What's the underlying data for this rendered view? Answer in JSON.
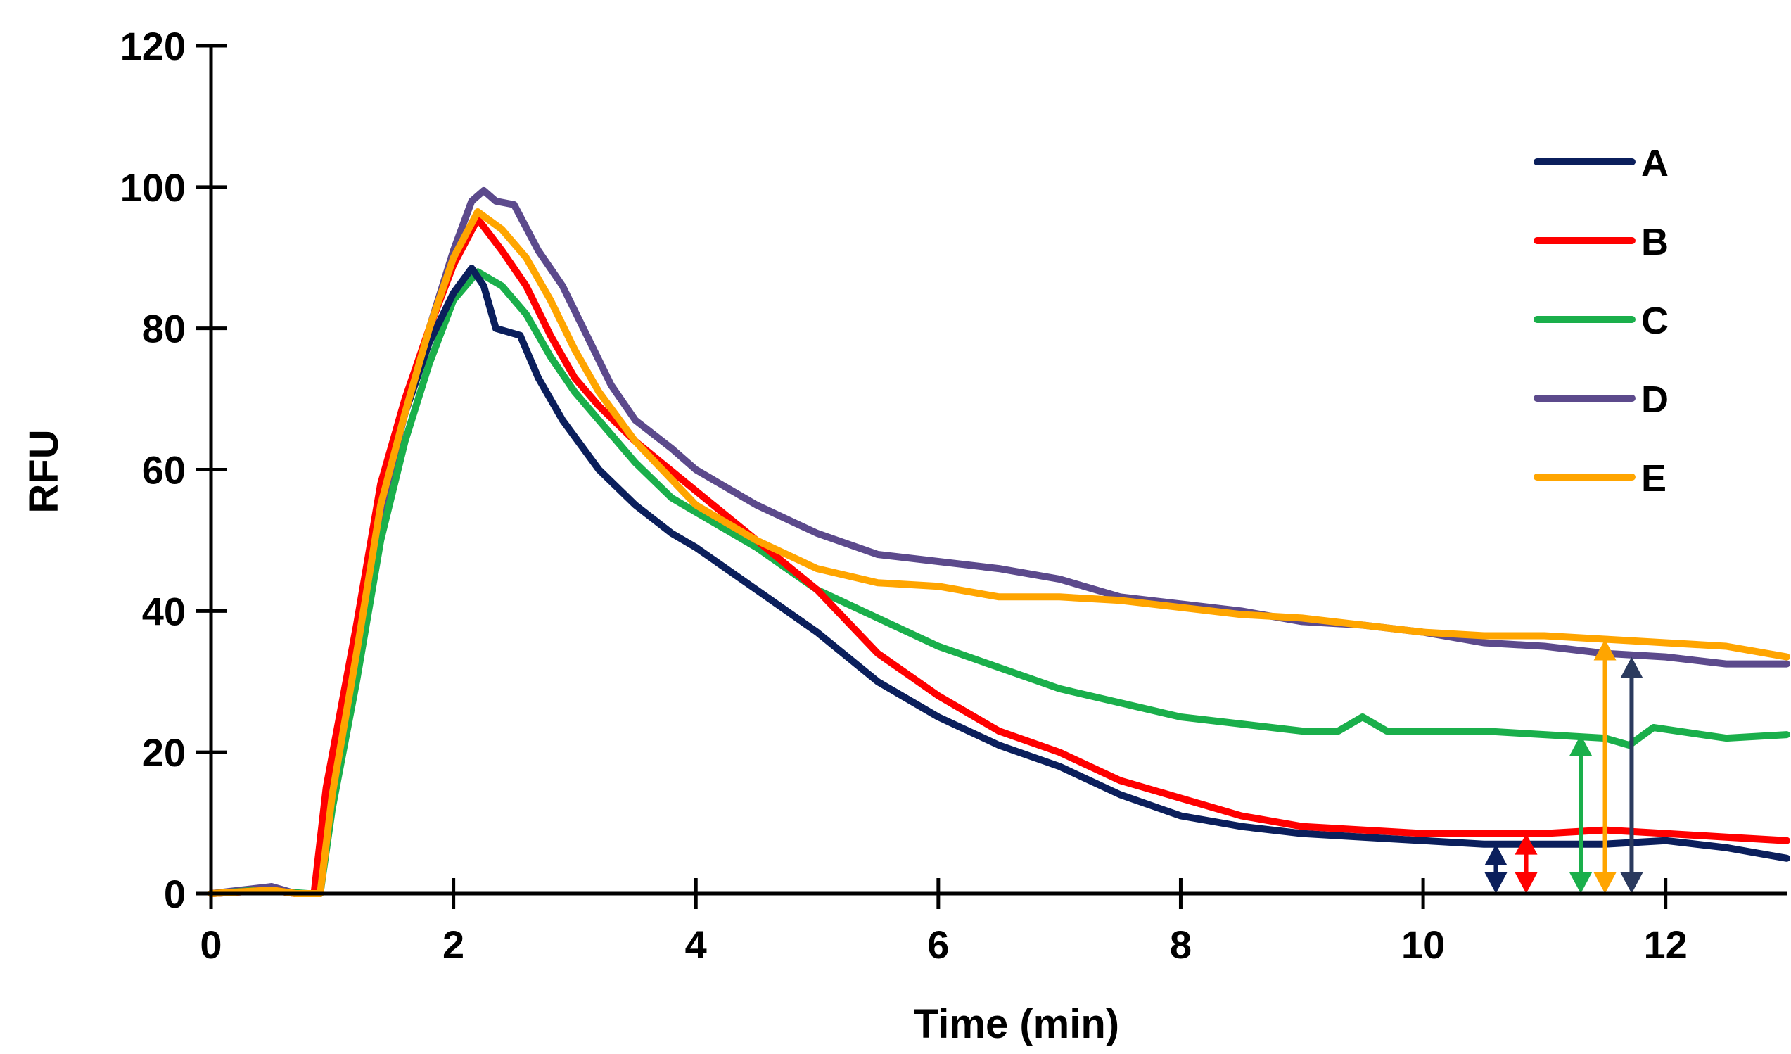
{
  "chart_data": {
    "type": "line",
    "title": "",
    "xlabel": "Time (min)",
    "ylabel": "RFU",
    "xlim": [
      0,
      13
    ],
    "ylim": [
      0,
      120
    ],
    "xticks": [
      0,
      2,
      4,
      6,
      8,
      10,
      12
    ],
    "yticks": [
      0,
      20,
      40,
      60,
      80,
      100,
      120
    ],
    "xtick_labels": [
      "0",
      "2",
      "4",
      "6",
      "8",
      "10",
      "12"
    ],
    "ytick_labels": [
      "0",
      "20",
      "40",
      "60",
      "80",
      "100",
      "120"
    ],
    "grid": false,
    "legend_position": "top-right",
    "series": [
      {
        "name": "A",
        "color": "#0b1f5c",
        "points": [
          [
            0,
            0
          ],
          [
            0.5,
            0.5
          ],
          [
            0.7,
            0
          ],
          [
            0.9,
            0
          ],
          [
            1.0,
            15
          ],
          [
            1.2,
            35
          ],
          [
            1.4,
            55
          ],
          [
            1.6,
            68
          ],
          [
            1.8,
            78
          ],
          [
            2.0,
            85
          ],
          [
            2.15,
            88.5
          ],
          [
            2.25,
            86
          ],
          [
            2.35,
            80
          ],
          [
            2.55,
            79
          ],
          [
            2.7,
            73
          ],
          [
            2.9,
            67
          ],
          [
            3.2,
            60
          ],
          [
            3.5,
            55
          ],
          [
            3.8,
            51
          ],
          [
            4.0,
            49
          ],
          [
            4.5,
            43
          ],
          [
            5.0,
            37
          ],
          [
            5.5,
            30
          ],
          [
            6.0,
            25
          ],
          [
            6.5,
            21
          ],
          [
            7.0,
            18
          ],
          [
            7.5,
            14
          ],
          [
            8.0,
            11
          ],
          [
            8.5,
            9.5
          ],
          [
            9.0,
            8.5
          ],
          [
            9.5,
            8
          ],
          [
            10.0,
            7.5
          ],
          [
            10.5,
            7
          ],
          [
            11.0,
            7
          ],
          [
            11.5,
            7
          ],
          [
            12.0,
            7.5
          ],
          [
            12.5,
            6.5
          ],
          [
            13.0,
            5
          ]
        ]
      },
      {
        "name": "B",
        "color": "#ff0000",
        "points": [
          [
            0,
            0
          ],
          [
            0.5,
            0.5
          ],
          [
            0.7,
            0
          ],
          [
            0.85,
            0
          ],
          [
            0.95,
            15
          ],
          [
            1.2,
            38
          ],
          [
            1.4,
            58
          ],
          [
            1.6,
            70
          ],
          [
            1.8,
            80
          ],
          [
            2.0,
            89
          ],
          [
            2.2,
            95.5
          ],
          [
            2.4,
            91
          ],
          [
            2.6,
            86
          ],
          [
            2.8,
            79
          ],
          [
            3.0,
            73
          ],
          [
            3.2,
            69
          ],
          [
            3.5,
            64
          ],
          [
            4.0,
            57
          ],
          [
            4.5,
            50
          ],
          [
            5.0,
            43
          ],
          [
            5.5,
            34
          ],
          [
            6.0,
            28
          ],
          [
            6.5,
            23
          ],
          [
            7.0,
            20
          ],
          [
            7.5,
            16
          ],
          [
            8.0,
            13.5
          ],
          [
            8.5,
            11
          ],
          [
            9.0,
            9.5
          ],
          [
            9.5,
            9
          ],
          [
            10.0,
            8.5
          ],
          [
            10.5,
            8.5
          ],
          [
            11.0,
            8.5
          ],
          [
            11.5,
            9
          ],
          [
            12.0,
            8.5
          ],
          [
            12.5,
            8
          ],
          [
            13.0,
            7.5
          ]
        ]
      },
      {
        "name": "C",
        "color": "#1aaf4b",
        "points": [
          [
            0,
            0
          ],
          [
            0.4,
            0.5
          ],
          [
            0.8,
            0
          ],
          [
            0.9,
            0
          ],
          [
            1.0,
            12
          ],
          [
            1.2,
            30
          ],
          [
            1.4,
            50
          ],
          [
            1.6,
            64
          ],
          [
            1.8,
            75
          ],
          [
            2.0,
            84
          ],
          [
            2.2,
            88
          ],
          [
            2.4,
            86
          ],
          [
            2.6,
            82
          ],
          [
            2.8,
            76
          ],
          [
            3.0,
            71
          ],
          [
            3.2,
            67
          ],
          [
            3.5,
            61
          ],
          [
            3.8,
            56
          ],
          [
            4.0,
            54
          ],
          [
            4.5,
            49
          ],
          [
            5.0,
            43
          ],
          [
            5.5,
            39
          ],
          [
            6.0,
            35
          ],
          [
            6.5,
            32
          ],
          [
            7.0,
            29
          ],
          [
            7.5,
            27
          ],
          [
            8.0,
            25
          ],
          [
            8.5,
            24
          ],
          [
            9.0,
            23
          ],
          [
            9.3,
            23
          ],
          [
            9.5,
            25
          ],
          [
            9.7,
            23
          ],
          [
            10.0,
            23
          ],
          [
            10.5,
            23
          ],
          [
            11.0,
            22.5
          ],
          [
            11.5,
            22
          ],
          [
            11.7,
            21
          ],
          [
            11.9,
            23.5
          ],
          [
            12.5,
            22
          ],
          [
            13.0,
            22.5
          ]
        ]
      },
      {
        "name": "D",
        "color": "#5c4a8c",
        "points": [
          [
            0,
            0
          ],
          [
            0.5,
            1
          ],
          [
            0.7,
            0
          ],
          [
            0.9,
            0
          ],
          [
            1.0,
            15
          ],
          [
            1.2,
            33
          ],
          [
            1.4,
            54
          ],
          [
            1.6,
            68
          ],
          [
            1.8,
            80
          ],
          [
            2.0,
            91
          ],
          [
            2.15,
            98
          ],
          [
            2.25,
            99.5
          ],
          [
            2.35,
            98
          ],
          [
            2.5,
            97.5
          ],
          [
            2.7,
            91
          ],
          [
            2.9,
            86
          ],
          [
            3.1,
            79
          ],
          [
            3.3,
            72
          ],
          [
            3.5,
            67
          ],
          [
            3.8,
            63
          ],
          [
            4.0,
            60
          ],
          [
            4.5,
            55
          ],
          [
            5.0,
            51
          ],
          [
            5.5,
            48
          ],
          [
            6.0,
            47
          ],
          [
            6.5,
            46
          ],
          [
            7.0,
            44.5
          ],
          [
            7.5,
            42
          ],
          [
            8.0,
            41
          ],
          [
            8.5,
            40
          ],
          [
            9.0,
            38.5
          ],
          [
            9.5,
            38
          ],
          [
            10.0,
            37
          ],
          [
            10.5,
            35.5
          ],
          [
            11.0,
            35
          ],
          [
            11.5,
            34
          ],
          [
            12.0,
            33.5
          ],
          [
            12.5,
            32.5
          ],
          [
            13.0,
            32.5
          ]
        ]
      },
      {
        "name": "E",
        "color": "#ffa500",
        "points": [
          [
            0,
            0
          ],
          [
            0.5,
            0.5
          ],
          [
            0.7,
            0
          ],
          [
            0.9,
            0
          ],
          [
            1.0,
            14
          ],
          [
            1.2,
            34
          ],
          [
            1.4,
            55
          ],
          [
            1.6,
            68
          ],
          [
            1.8,
            80
          ],
          [
            2.0,
            90
          ],
          [
            2.2,
            96.5
          ],
          [
            2.4,
            94
          ],
          [
            2.6,
            90
          ],
          [
            2.8,
            84
          ],
          [
            3.0,
            77
          ],
          [
            3.2,
            71
          ],
          [
            3.5,
            64
          ],
          [
            4.0,
            55
          ],
          [
            4.5,
            50
          ],
          [
            5.0,
            46
          ],
          [
            5.5,
            44
          ],
          [
            6.0,
            43.5
          ],
          [
            6.5,
            42
          ],
          [
            7.0,
            42
          ],
          [
            7.5,
            41.5
          ],
          [
            8.0,
            40.5
          ],
          [
            8.5,
            39.5
          ],
          [
            9.0,
            39
          ],
          [
            9.5,
            38
          ],
          [
            10.0,
            37
          ],
          [
            10.5,
            36.5
          ],
          [
            11.0,
            36.5
          ],
          [
            11.5,
            36
          ],
          [
            12.0,
            35.5
          ],
          [
            12.5,
            35
          ],
          [
            13.0,
            33.5
          ]
        ]
      }
    ],
    "annotations": {
      "type": "double_arrows",
      "arrows": [
        {
          "series": "A",
          "color": "#0b1f5c",
          "x": 10.6,
          "from": 0,
          "to": 7
        },
        {
          "series": "B",
          "color": "#ff0000",
          "x": 10.85,
          "from": 0,
          "to": 8.5
        },
        {
          "series": "C",
          "color": "#1aaf4b",
          "x": 11.3,
          "from": 0,
          "to": 22.5
        },
        {
          "series": "E",
          "color": "#ffa500",
          "x": 11.5,
          "from": 0,
          "to": 36
        },
        {
          "series": "D",
          "color": "#2b3a5e",
          "x": 11.72,
          "from": 0,
          "to": 33.5
        }
      ]
    }
  }
}
